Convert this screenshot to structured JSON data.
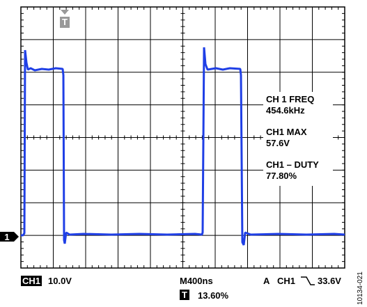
{
  "markers": {
    "trigger": "T",
    "channel": "1"
  },
  "measurements": [
    {
      "label": "CH 1 FREQ",
      "value": "454.6kHz"
    },
    {
      "label": "CH1 MAX",
      "value": "57.6V"
    },
    {
      "label": "CH1 – DUTY",
      "value": "77.80%"
    }
  ],
  "status": {
    "channel": "CH1",
    "scale": "10.0V",
    "timebase": "M400ns",
    "trigger_mode": "A",
    "trigger_channel": "CH1",
    "trigger_level": "33.6V",
    "trigger_box": "T",
    "trigger_position": "13.60%"
  },
  "figure_id": "10134-021"
}
